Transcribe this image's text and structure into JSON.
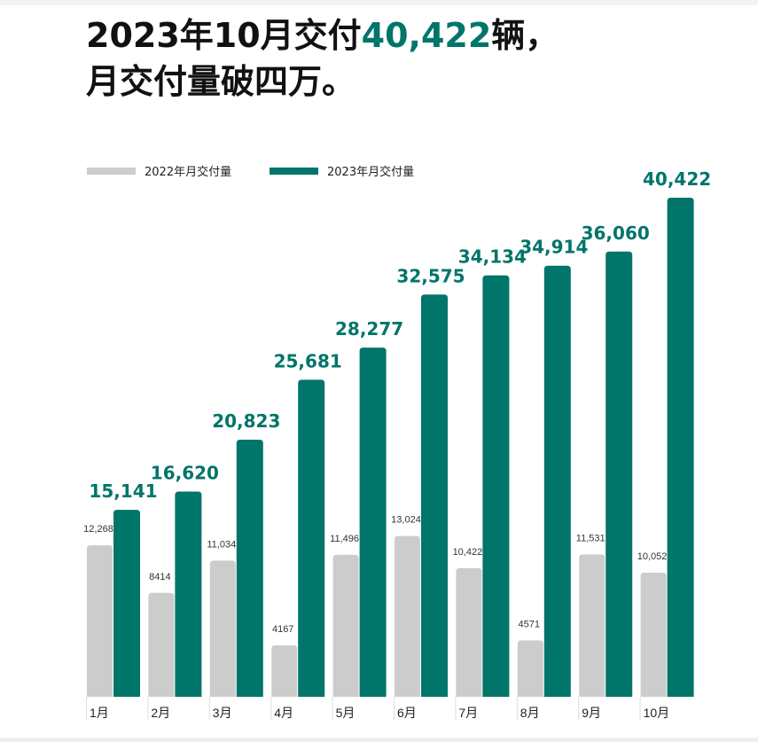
{
  "title": {
    "line1_prefix": "2023年10月交付",
    "line1_highlight": "40,422",
    "line1_suffix": "辆，",
    "line2": "月交付量破四万。"
  },
  "colors": {
    "series_2022": "#cccccc",
    "series_2023": "#00756a",
    "accent": "#00756a"
  },
  "chart_data": {
    "type": "bar",
    "title": "2023年10月交付40,422辆，月交付量破四万。",
    "categories": [
      "1月",
      "2月",
      "3月",
      "4月",
      "5月",
      "6月",
      "7月",
      "8月",
      "9月",
      "10月"
    ],
    "series": [
      {
        "name": "2022年月交付量",
        "values": [
          12268,
          8414,
          11034,
          4167,
          11496,
          13024,
          10422,
          4571,
          11531,
          10052
        ],
        "labels": [
          "12,268",
          "8414",
          "11,034",
          "4167",
          "11,496",
          "13,024",
          "10,422",
          "4571",
          "11,531",
          "10,052"
        ]
      },
      {
        "name": "2023年月交付量",
        "values": [
          15141,
          16620,
          20823,
          25681,
          28277,
          32575,
          34134,
          34914,
          36060,
          40422
        ],
        "labels": [
          "15,141",
          "16,620",
          "20,823",
          "25,681",
          "28,277",
          "32,575",
          "34,134",
          "34,914",
          "36,060",
          "40,422"
        ]
      }
    ],
    "xlabel": "",
    "ylabel": "",
    "ylim": [
      0,
      40422
    ],
    "grid": false,
    "legend": "top-left"
  }
}
